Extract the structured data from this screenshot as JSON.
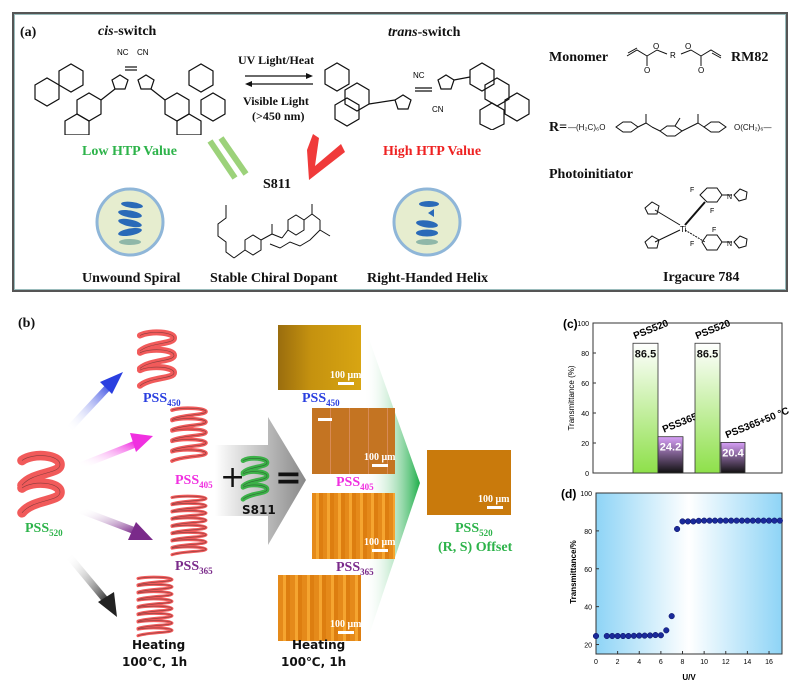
{
  "panel_a": {
    "label": "(a)",
    "cis_italic": "cis",
    "cis_rest": "-switch",
    "trans_italic": "trans",
    "trans_rest": "-switch",
    "forward": "UV Light/Heat",
    "reverse_1": "Visible Light",
    "reverse_2": "(>450 nm)",
    "low_htp": "Low HTP Value",
    "high_htp": "High HTP Value",
    "s811": "S811",
    "unwound": "Unwound Spiral",
    "dopant": "Stable Chiral Dopant",
    "helix": "Right-Handed Helix",
    "monomer": "Monomer",
    "rm82": "RM82",
    "r_eq": "R=",
    "r_left": "—(H₂C)₆O",
    "r_right": "O(CH₂)₆—",
    "photoinitiator": "Photoinitiator",
    "irgacure": "Irgacure 784",
    "colors": {
      "low": "#2db34a",
      "high": "#ee2222"
    }
  },
  "panel_b": {
    "label": "(b)",
    "pss520": {
      "main": "PSS",
      "sub": "520"
    },
    "pss450": {
      "main": "PSS",
      "sub": "450"
    },
    "pss405": {
      "main": "PSS",
      "sub": "405"
    },
    "pss365": {
      "main": "PSS",
      "sub": "365"
    },
    "heating": "Heating",
    "heating_cond": "100℃, 1h",
    "plus": "+",
    "equals": "=",
    "s811": "S811",
    "scale": "100 μm",
    "offset_pss": {
      "main": "PSS",
      "sub": "520"
    },
    "offset": "(R, S) Offset",
    "colors": {
      "pss520": "#2db34a",
      "pss450": "#2a3fe0",
      "pss405": "#f030e0",
      "pss365": "#7a2a8a"
    }
  },
  "chart_data": [
    {
      "type": "bar",
      "panel_label": "(c)",
      "ylabel": "Transmittance (%)",
      "ylim": [
        0,
        100
      ],
      "yticks": [
        0,
        20,
        40,
        60,
        80,
        100
      ],
      "groups": [
        {
          "bars": [
            {
              "label": "PSS520",
              "value": 86.5,
              "text": "86.5"
            },
            {
              "label": "PSS365",
              "value": 24.2,
              "text": "24.2"
            }
          ]
        },
        {
          "bars": [
            {
              "label": "PSS520",
              "value": 86.5,
              "text": "86.5"
            },
            {
              "label": "PSS365+50 °C",
              "value": 20.4,
              "text": "20.4"
            }
          ]
        }
      ]
    },
    {
      "type": "scatter",
      "panel_label": "(d)",
      "xlabel": "U/V",
      "ylabel": "Transmittance/%",
      "xlim": [
        0,
        17.2
      ],
      "ylim": [
        15,
        100
      ],
      "xticks": [
        0,
        2,
        4,
        6,
        8,
        10,
        12,
        14,
        16
      ],
      "yticks": [
        20,
        40,
        60,
        80,
        100
      ],
      "x": [
        0,
        1,
        1.5,
        2,
        2.5,
        3,
        3.5,
        4,
        4.5,
        5,
        5.5,
        6,
        6.5,
        7,
        7.5,
        8,
        8.5,
        9,
        9.5,
        10,
        10.5,
        11,
        11.5,
        12,
        12.5,
        13,
        13.5,
        14,
        14.5,
        15,
        15.5,
        16,
        16.5,
        17
      ],
      "y": [
        24.5,
        24.5,
        24.5,
        24.5,
        24.5,
        24.5,
        24.6,
        24.7,
        24.7,
        24.8,
        25,
        24.9,
        27.5,
        35,
        81,
        85,
        85,
        85,
        85.3,
        85.4,
        85.4,
        85.4,
        85.4,
        85.4,
        85.4,
        85.4,
        85.4,
        85.4,
        85.4,
        85.4,
        85.4,
        85.4,
        85.4,
        85.4
      ]
    }
  ]
}
